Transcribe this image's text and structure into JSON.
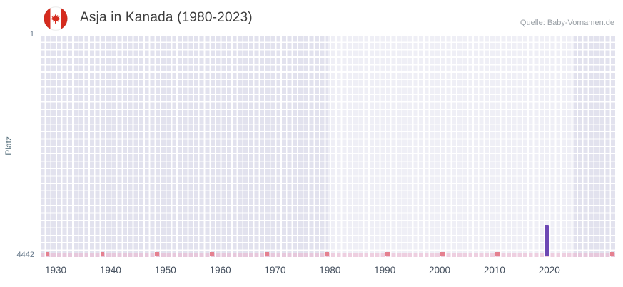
{
  "header": {
    "title": "Asja in Kanada (1980-2023)",
    "flag_icon": "canada-flag",
    "source": "Quelle: Baby-Vornamen.de"
  },
  "chart_data": {
    "type": "bar",
    "title": "Asja in Kanada (1980-2023)",
    "xlabel": "",
    "ylabel": "Platz",
    "y_axis": {
      "top_label": "1",
      "bottom_label": "4442"
    },
    "y_range": [
      1,
      4442
    ],
    "y_inverted": true,
    "x_range": [
      1927,
      2032
    ],
    "x_ticks": [
      "1930",
      "1940",
      "1950",
      "1960",
      "1970",
      "1980",
      "1990",
      "2000",
      "2010",
      "2020"
    ],
    "highlight_range": [
      1980,
      2023
    ],
    "grid": true,
    "legend": "none",
    "colors": {
      "plot_background": "#e2e2ee",
      "highlight_band": "rgba(255,255,255,0.45)",
      "gridlines": "#ffffff"
    },
    "series": [
      {
        "name": "Platz",
        "color": "#6d48b4",
        "points": [
          {
            "year": 2019,
            "rank": 3800
          }
        ]
      }
    ],
    "baseline_marks": {
      "color": "#e5808f",
      "rank_approx": 4400,
      "years": [
        1928,
        1938,
        1948,
        1958,
        1968,
        1979,
        1990,
        2000,
        2010
      ],
      "right_edge_mark": true,
      "strip_color": "rgba(238,168,198,0.45)"
    }
  }
}
